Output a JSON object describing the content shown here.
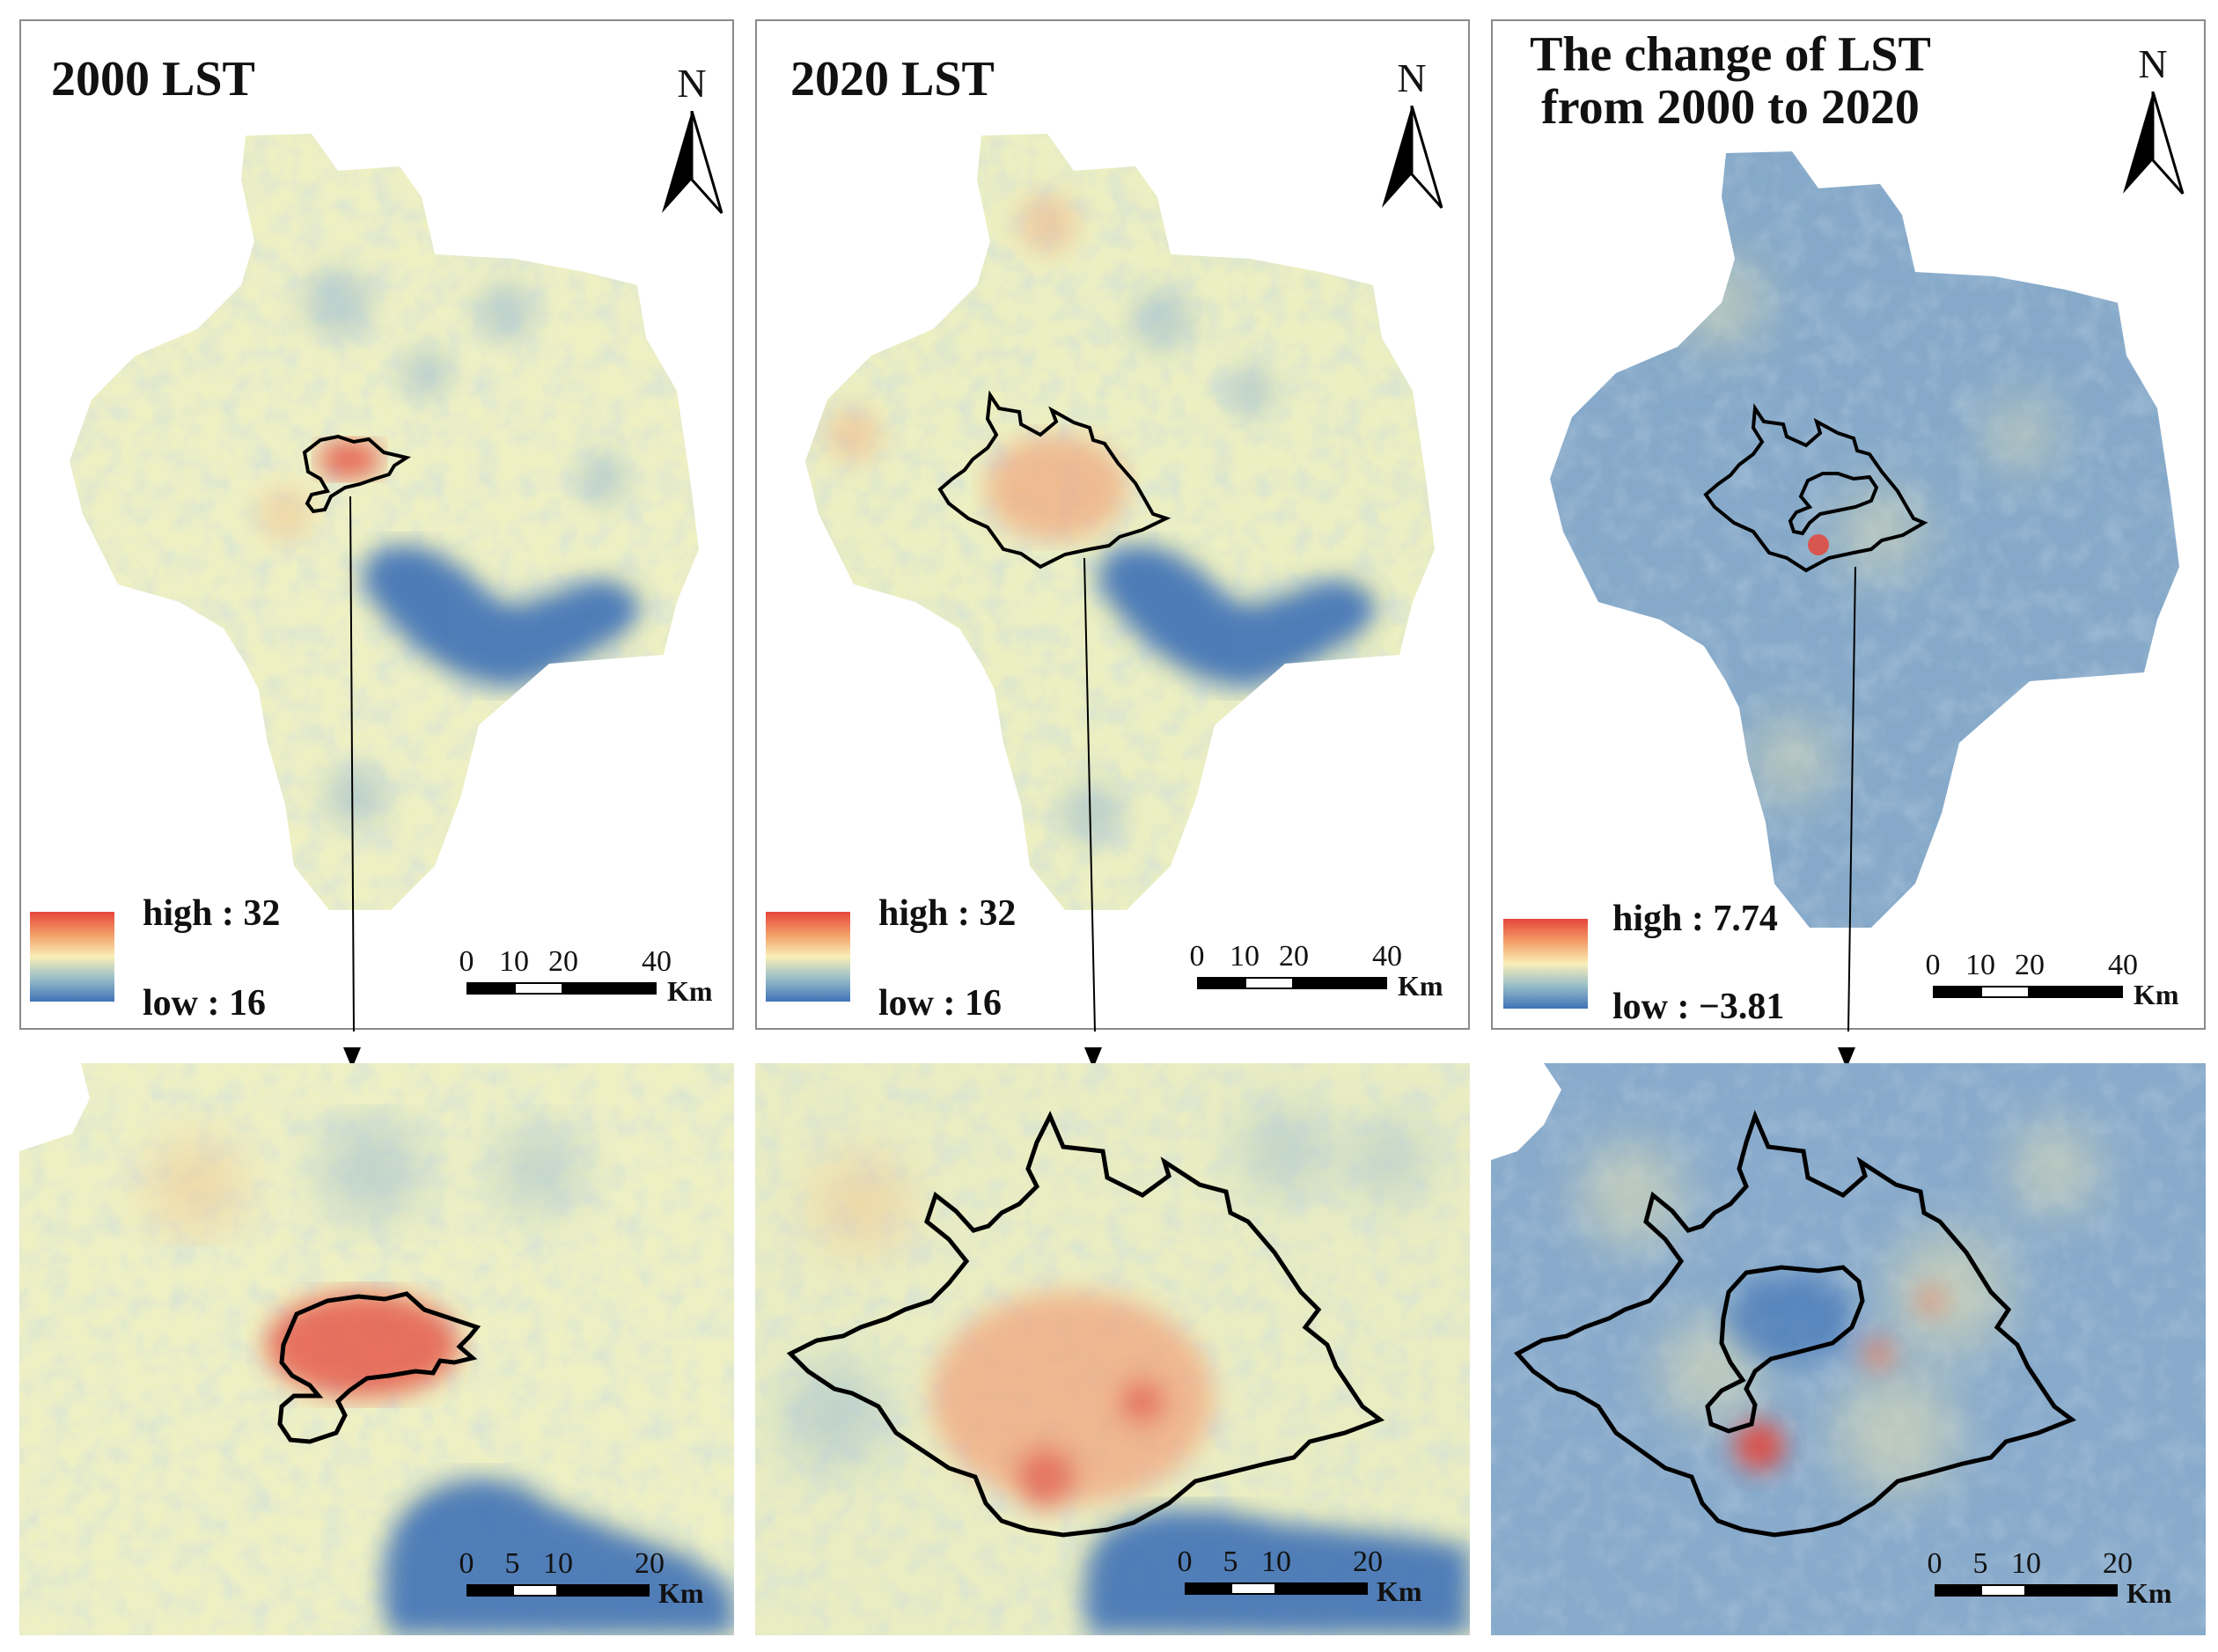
{
  "panels": [
    {
      "title_lines": [
        "2000 LST"
      ],
      "north_label": "N",
      "legend": {
        "high": "high : 32",
        "low": "low : 16"
      },
      "scale": {
        "ticks": [
          "0",
          "10",
          "20",
          "40"
        ],
        "unit": "Km"
      }
    },
    {
      "title_lines": [
        "2020 LST"
      ],
      "north_label": "N",
      "legend": {
        "high": "high : 32",
        "low": "low : 16"
      },
      "scale": {
        "ticks": [
          "0",
          "10",
          "20",
          "40"
        ],
        "unit": "Km"
      }
    },
    {
      "title_lines": [
        "The change of LST",
        "from 2000 to 2020"
      ],
      "north_label": "N",
      "legend": {
        "high": "high : 7.74",
        "low": "low : −3.81"
      },
      "scale": {
        "ticks": [
          "0",
          "10",
          "20",
          "40"
        ],
        "unit": "Km"
      }
    }
  ],
  "zooms": [
    {
      "scale": {
        "ticks": [
          "0",
          "5",
          "10",
          "20"
        ],
        "unit": "Km"
      }
    },
    {
      "scale": {
        "ticks": [
          "0",
          "5",
          "10",
          "20"
        ],
        "unit": "Km"
      }
    },
    {
      "scale": {
        "ticks": [
          "0",
          "5",
          "10",
          "20"
        ],
        "unit": "Km"
      }
    }
  ],
  "colors": {
    "high": "#e5463b",
    "mid": "#f8efb7",
    "low": "#3f72b6",
    "boundary": "#000000",
    "panel_border": "#8a8a8a"
  }
}
